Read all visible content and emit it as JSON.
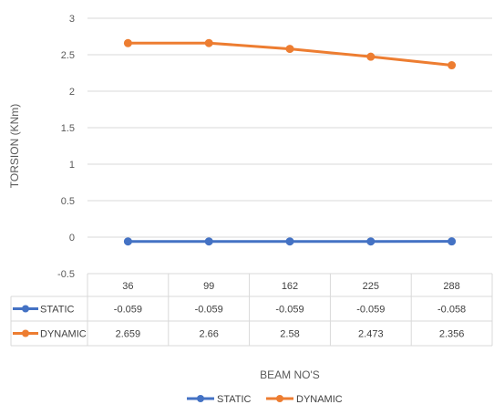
{
  "chart_data": {
    "type": "line",
    "title": "",
    "ylabel": "TORSION (KNm)",
    "xlabel": "BEAM NO'S",
    "categories": [
      "36",
      "99",
      "162",
      "225",
      "288"
    ],
    "ylim": [
      -0.5,
      3
    ],
    "yticks": [
      "-0.5",
      "0",
      "0.5",
      "1",
      "1.5",
      "2",
      "2.5",
      "3"
    ],
    "grid": true,
    "legend_position": "bottom",
    "series": [
      {
        "name": "STATIC",
        "color": "#4472c4",
        "values": [
          -0.059,
          -0.059,
          -0.059,
          -0.059,
          -0.058
        ],
        "labels": [
          "-0.059",
          "-0.059",
          "-0.059",
          "-0.059",
          "-0.058"
        ]
      },
      {
        "name": "DYNAMIC",
        "color": "#ed7d31",
        "values": [
          2.659,
          2.66,
          2.58,
          2.473,
          2.356
        ],
        "labels": [
          "2.659",
          "2.66",
          "2.58",
          "2.473",
          "2.356"
        ]
      }
    ]
  }
}
